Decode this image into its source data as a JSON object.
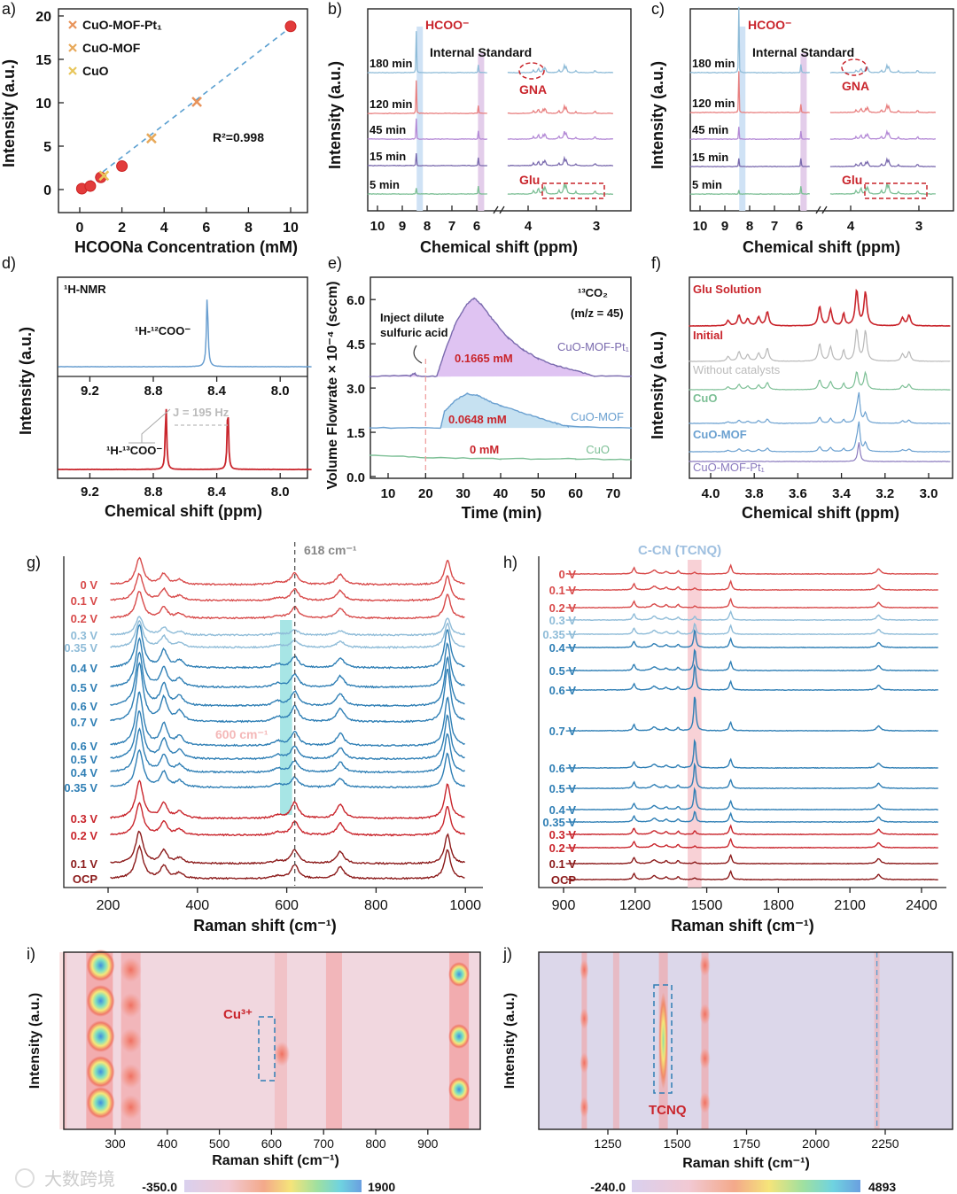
{
  "panel_labels": [
    "a)",
    "b)",
    "c)",
    "d)",
    "e)",
    "f)",
    "g)",
    "h)",
    "i)",
    "j)"
  ],
  "watermark": "大数跨境",
  "colors": {
    "red": "#c9252c",
    "darkred": "#8b1a1a",
    "blue": "#2f7fb5",
    "lightblue": "#8fbcd8",
    "purple": "#b48ad6",
    "green": "#7cbf95",
    "orange": "#e8935a",
    "yellow": "#e8c65a",
    "band_blue": "#cfe2f5",
    "band_purple": "#e3cdea",
    "band_cyan": "#5fd0d0",
    "band_pink": "#f6c6cc"
  },
  "chart_data": [
    {
      "panel": "a",
      "type": "scatter",
      "xlabel": "HCOONa Concentration (mM)",
      "ylabel": "Intensity (a.u.)",
      "xlim": [
        -0.8,
        10.8
      ],
      "ylim": [
        -2.5,
        20.8
      ],
      "xticks": [
        "0",
        "2",
        "4",
        "6",
        "8",
        "10"
      ],
      "yticks": [
        "0",
        "5",
        "10",
        "15",
        "20"
      ],
      "legend": [
        "CuO-MOF-Pt₁",
        "CuO-MOF",
        "CuO"
      ],
      "annotation": "R²=0.998",
      "standards": [
        [
          0.1,
          0.1
        ],
        [
          0.5,
          0.4
        ],
        [
          1.0,
          1.4
        ],
        [
          2.0,
          2.7
        ],
        [
          10.0,
          18.8
        ]
      ],
      "samples": [
        {
          "name": "CuO-MOF-Pt₁",
          "x": 5.55,
          "y": 10.1
        },
        {
          "name": "CuO-MOF",
          "x": 3.4,
          "y": 5.9
        },
        {
          "name": "CuO",
          "x": 1.15,
          "y": 1.6
        }
      ],
      "fit": {
        "slope": 1.87,
        "intercept": 0.0
      }
    },
    {
      "panel": "b",
      "type": "line",
      "xlabel": "Chemical shift (ppm)",
      "ylabel": "Intensity (a.u.)",
      "xticks_left": [
        "10",
        "9",
        "8",
        "7",
        "6"
      ],
      "xticks_right": [
        "4",
        "3"
      ],
      "annotations": {
        "hcoo": "HCOO⁻",
        "istd": "Internal Standard",
        "gna": "GNA",
        "glu": "Glu"
      },
      "traces": [
        "180 min",
        "120 min",
        "45 min",
        "15 min",
        "5 min"
      ],
      "hcoo_intensity": [
        1.0,
        0.8,
        0.5,
        0.3,
        0.15
      ]
    },
    {
      "panel": "c",
      "type": "line",
      "xlabel": "Chemical shift (ppm)",
      "ylabel": "Intensity (a.u.)",
      "xticks_left": [
        "10",
        "9",
        "8",
        "7",
        "6"
      ],
      "xticks_right": [
        "4",
        "3"
      ],
      "annotations": {
        "hcoo": "HCOO⁻",
        "istd": "Internal Standard",
        "gna": "GNA",
        "glu": "Glu"
      },
      "traces": [
        "180 min",
        "120 min",
        "45 min",
        "15 min",
        "5 min"
      ],
      "hcoo_intensity": [
        1.6,
        1.0,
        0.3,
        0.2,
        0.1
      ]
    },
    {
      "panel": "d",
      "type": "line",
      "xlabel": "Chemical shift (ppm)",
      "ylabel": "Intensity (a.u.)",
      "xticks": [
        "9.2",
        "8.8",
        "8.4",
        "8.0"
      ],
      "title": "¹H-NMR",
      "top_label": "¹H-¹²COO⁻",
      "bottom_label": "¹H-¹³COO⁻",
      "j_label": "J = 195 Hz",
      "top_peaks": [
        8.46
      ],
      "bottom_peaks": [
        8.72,
        8.33
      ]
    },
    {
      "panel": "e",
      "type": "area",
      "xlabel": "Time (min)",
      "ylabel": "Volume Flowrate × 10⁻⁴ (sccm)",
      "xlim": [
        5,
        75
      ],
      "ylim": [
        0,
        6.6
      ],
      "xticks": [
        "10",
        "20",
        "30",
        "40",
        "50",
        "60",
        "70"
      ],
      "yticks": [
        "0.0",
        "1.5",
        "3.0",
        "4.5",
        "6.0"
      ],
      "species": "¹³CO₂",
      "mz": "(m/z = 45)",
      "inject_note": [
        "Inject dilute",
        "sulfuric acid"
      ],
      "inject_time": 20,
      "series": [
        {
          "name": "CuO-MOF-Pt₁",
          "amount": "0.1665 mM",
          "points": [
            [
              5,
              3.4
            ],
            [
              16,
              3.42
            ],
            [
              17,
              3.5
            ],
            [
              18,
              3.4
            ],
            [
              23,
              3.4
            ],
            [
              25,
              4.2
            ],
            [
              28,
              5.2
            ],
            [
              31,
              5.85
            ],
            [
              33,
              6.05
            ],
            [
              35,
              5.8
            ],
            [
              38,
              5.3
            ],
            [
              42,
              4.7
            ],
            [
              46,
              4.3
            ],
            [
              50,
              4.0
            ],
            [
              55,
              3.75
            ],
            [
              60,
              3.6
            ],
            [
              65,
              3.4
            ],
            [
              75,
              3.4
            ]
          ]
        },
        {
          "name": "CuO-MOF",
          "amount": "0.0648 mM",
          "points": [
            [
              5,
              1.65
            ],
            [
              24,
              1.65
            ],
            [
              25,
              2.2
            ],
            [
              28,
              2.6
            ],
            [
              31,
              2.8
            ],
            [
              34,
              2.75
            ],
            [
              37,
              2.55
            ],
            [
              40,
              2.4
            ],
            [
              45,
              2.2
            ],
            [
              50,
              2.0
            ],
            [
              55,
              1.8
            ],
            [
              58,
              1.7
            ],
            [
              75,
              1.65
            ]
          ]
        },
        {
          "name": "CuO",
          "amount": "0 mM",
          "points": [
            [
              5,
              0.72
            ],
            [
              20,
              0.65
            ],
            [
              40,
              0.6
            ],
            [
              60,
              0.6
            ],
            [
              75,
              0.57
            ]
          ]
        }
      ]
    },
    {
      "panel": "f",
      "type": "line",
      "xlabel": "Chemical shift (ppm)",
      "ylabel": "Intensity (a.u.)",
      "xticks": [
        "4.0",
        "3.8",
        "3.6",
        "3.4",
        "3.2",
        "3.0"
      ],
      "traces": [
        "Glu Solution",
        "Initial",
        "Without catalysts",
        "CuO",
        "CuO-MOF",
        "CuO-MOF-Pt₁"
      ]
    },
    {
      "panel": "g",
      "type": "line",
      "xlabel": "Raman shift (cm⁻¹)",
      "xticks": [
        "200",
        "400",
        "600",
        "800",
        "1000"
      ],
      "annotation_618": "618 cm⁻¹",
      "annotation_600": "600 cm⁻¹",
      "traces": [
        "0 V",
        "0.1 V",
        "0.2 V",
        "0.3 V",
        "0.35 V",
        "0.4 V",
        "0.5 V",
        "0.6 V",
        "0.7 V",
        "0.6 V",
        "0.5 V",
        "0.4 V",
        "0.35 V",
        "0.3 V",
        "0.2 V",
        "0.1 V",
        "OCP"
      ],
      "peaks": [
        [
          270,
          60,
          10
        ],
        [
          325,
          24,
          9
        ],
        [
          360,
          10,
          10
        ],
        [
          580,
          5,
          12
        ],
        [
          618,
          16,
          10
        ],
        [
          720,
          14,
          10
        ],
        [
          960,
          55,
          8
        ]
      ]
    },
    {
      "panel": "h",
      "type": "line",
      "xlabel": "Raman shift (cm⁻¹)",
      "xticks": [
        "900",
        "1200",
        "1500",
        "1800",
        "2100",
        "2400"
      ],
      "annotation": "C-CN (TCNQ)",
      "traces": [
        "0 V",
        "0.1 V",
        "0.2 V",
        "0.3 V",
        "0.35 V",
        "0.4 V",
        "0.5 V",
        "0.6 V",
        "0.7 V",
        "0.6 V",
        "0.5 V",
        "0.4 V",
        "0.35 V",
        "0.3 V",
        "0.2 V",
        "0.1 V",
        "OCP"
      ],
      "peaks": [
        [
          1195,
          10,
          6
        ],
        [
          1280,
          6,
          12
        ],
        [
          1330,
          4,
          8
        ],
        [
          1380,
          5,
          6
        ],
        [
          1450,
          30,
          5
        ],
        [
          1600,
          14,
          6
        ],
        [
          2220,
          8,
          10
        ]
      ]
    },
    {
      "panel": "i",
      "type": "heatmap",
      "xlabel": "Raman shift (cm⁻¹)",
      "ylabel": "Intensity (a.u.)",
      "xticks": [
        "300",
        "400",
        "500",
        "600",
        "700",
        "800",
        "900"
      ],
      "annotation": "Cu³⁺",
      "colorbar": [
        "-350.0",
        "1900"
      ]
    },
    {
      "panel": "j",
      "type": "heatmap",
      "xlabel": "Raman shift (cm⁻¹)",
      "ylabel": "Intensity (a.u.)",
      "xticks": [
        "1250",
        "1500",
        "1750",
        "2000",
        "2250"
      ],
      "annotation": "TCNQ",
      "colorbar": [
        "-240.0",
        "4893"
      ]
    }
  ]
}
